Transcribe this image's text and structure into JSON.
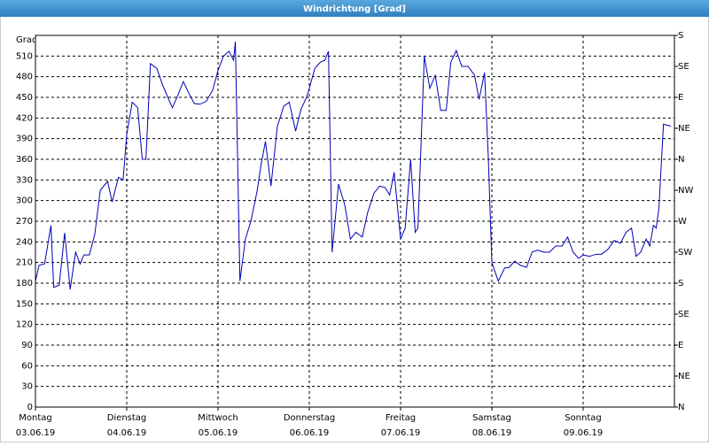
{
  "chart_data": {
    "type": "line",
    "title": "Windrichtung [Grad]",
    "y_label": "Grad",
    "xlim": [
      0,
      7
    ],
    "xticks": [
      {
        "value": 0,
        "label": "Montag",
        "date": "03.06.19"
      },
      {
        "value": 1,
        "label": "Dienstag",
        "date": "04.06.19"
      },
      {
        "value": 2,
        "label": "Mittwoch",
        "date": "05.06.19"
      },
      {
        "value": 3,
        "label": "Donnerstag",
        "date": "06.06.19"
      },
      {
        "value": 4,
        "label": "Freitag",
        "date": "07.06.19"
      },
      {
        "value": 5,
        "label": "Samstag",
        "date": "08.06.19"
      },
      {
        "value": 6,
        "label": "Sonntag",
        "date": "09.06.19"
      }
    ],
    "ylim": [
      0,
      540
    ],
    "yticks": [
      0,
      30,
      60,
      90,
      120,
      150,
      180,
      210,
      240,
      270,
      300,
      330,
      360,
      390,
      420,
      450,
      480,
      510
    ],
    "y2lim": [
      0,
      540
    ],
    "y2ticks": [
      {
        "value": 0,
        "label": "N"
      },
      {
        "value": 45,
        "label": "NE"
      },
      {
        "value": 90,
        "label": "E"
      },
      {
        "value": 135,
        "label": "SE"
      },
      {
        "value": 180,
        "label": "S"
      },
      {
        "value": 225,
        "label": "SW"
      },
      {
        "value": 270,
        "label": "W"
      },
      {
        "value": 315,
        "label": "NW"
      },
      {
        "value": 360,
        "label": "N"
      },
      {
        "value": 405,
        "label": "NE"
      },
      {
        "value": 450,
        "label": "E"
      },
      {
        "value": 495,
        "label": "SE"
      },
      {
        "value": 540,
        "label": "S"
      }
    ],
    "grid": true,
    "series": [
      {
        "color": "#0000b8",
        "x": [
          0,
          0.04,
          0.1,
          0.17,
          0.2,
          0.26,
          0.32,
          0.38,
          0.44,
          0.49,
          0.53,
          0.59,
          0.65,
          0.71,
          0.79,
          0.84,
          0.91,
          0.96,
          1.0,
          1.06,
          1.12,
          1.17,
          1.21,
          1.26,
          1.33,
          1.39,
          1.45,
          1.5,
          1.56,
          1.62,
          1.68,
          1.74,
          1.8,
          1.87,
          1.94,
          2.0,
          2.06,
          2.12,
          2.17,
          2.19,
          2.24,
          2.3,
          2.36,
          2.43,
          2.47,
          2.52,
          2.58,
          2.65,
          2.72,
          2.78,
          2.85,
          2.91,
          2.97,
          3.0,
          3.06,
          3.12,
          3.17,
          3.21,
          3.25,
          3.32,
          3.39,
          3.45,
          3.51,
          3.58,
          3.64,
          3.71,
          3.77,
          3.83,
          3.88,
          3.93,
          4.0,
          4.05,
          4.11,
          4.16,
          4.19,
          4.26,
          4.32,
          4.38,
          4.44,
          4.5,
          4.55,
          4.61,
          4.67,
          4.74,
          4.81,
          4.86,
          4.92,
          4.96,
          5.0,
          5.07,
          5.14,
          5.19,
          5.25,
          5.31,
          5.38,
          5.44,
          5.5,
          5.57,
          5.63,
          5.7,
          5.77,
          5.83,
          5.89,
          5.95,
          6.0,
          6.07,
          6.14,
          6.2,
          6.27,
          6.34,
          6.41,
          6.47,
          6.53,
          6.58,
          6.63,
          6.69,
          6.73,
          6.77,
          6.8,
          6.83,
          6.88,
          6.96
        ],
        "values": [
          183,
          206,
          208,
          264,
          174,
          177,
          253,
          171,
          225,
          208,
          221,
          221,
          251,
          315,
          328,
          298,
          334,
          330,
          396,
          443,
          435,
          360,
          360,
          499,
          492,
          469,
          450,
          435,
          453,
          473,
          456,
          441,
          440,
          444,
          460,
          489,
          510,
          517,
          504,
          531,
          183,
          244,
          270,
          315,
          351,
          386,
          321,
          408,
          437,
          443,
          401,
          433,
          450,
          463,
          492,
          501,
          504,
          517,
          225,
          324,
          293,
          244,
          254,
          247,
          283,
          311,
          321,
          319,
          308,
          341,
          244,
          260,
          360,
          254,
          260,
          510,
          463,
          482,
          431,
          431,
          501,
          518,
          495,
          495,
          482,
          447,
          486,
          366,
          210,
          183,
          202,
          203,
          212,
          206,
          203,
          225,
          228,
          225,
          225,
          234,
          234,
          247,
          225,
          216,
          221,
          219,
          222,
          222,
          229,
          242,
          238,
          254,
          260,
          219,
          225,
          244,
          234,
          264,
          260,
          289,
          411,
          408
        ]
      }
    ]
  }
}
